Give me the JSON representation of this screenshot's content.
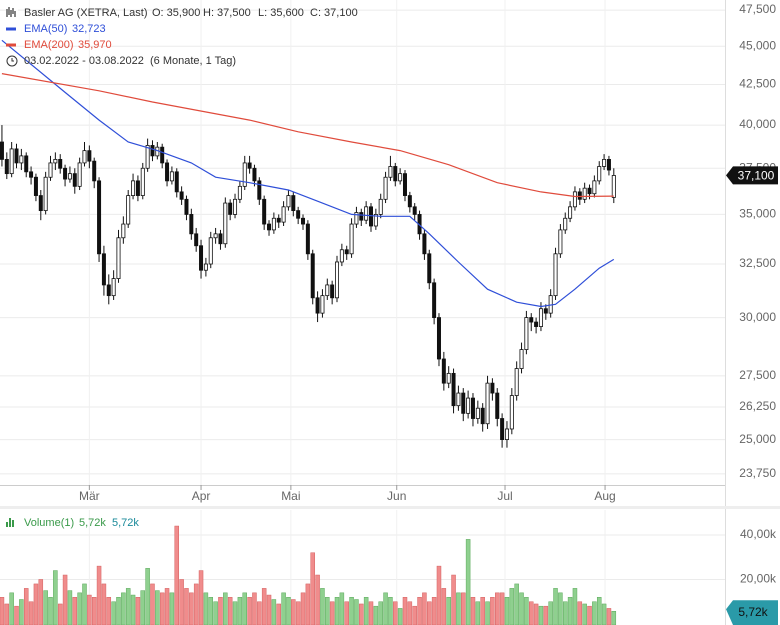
{
  "chart_data": {
    "type": "candlestick",
    "title": "Basler AG (XETRA, Last)",
    "ohlc_labels": [
      "O: 35,900",
      "H: 37,500",
      "L: 35,600",
      "C: 37,100"
    ],
    "date_range": "03.02.2022 - 03.08.2022",
    "period": "(6 Monate, 1 Tag)",
    "log_y": true,
    "grid": true,
    "up_color": "#ffffff",
    "down_color": "#111111",
    "volume_up_color": "#8fd08f",
    "volume_down_color": "#f08c8c",
    "ylim": [
      23360,
      48220
    ],
    "yticks": [
      {
        "value": 23750,
        "label": "23,750"
      },
      {
        "value": 25000,
        "label": "25,000"
      },
      {
        "value": 26250,
        "label": "26,250"
      },
      {
        "value": 27500,
        "label": "27,500"
      },
      {
        "value": 30000,
        "label": "30,000"
      },
      {
        "value": 32500,
        "label": "32,500"
      },
      {
        "value": 35000,
        "label": "35,000"
      },
      {
        "value": 37500,
        "label": "37,500"
      },
      {
        "value": 40000,
        "label": "40,000"
      },
      {
        "value": 42500,
        "label": "42,500"
      },
      {
        "value": 45000,
        "label": "45,000"
      },
      {
        "value": 47500,
        "label": "47,500"
      }
    ],
    "xlim": [
      -0.4,
      148.9
    ],
    "xticks": [
      {
        "value": 18,
        "label": "Mär"
      },
      {
        "value": 41,
        "label": "Apr"
      },
      {
        "value": 59.5,
        "label": "Mai"
      },
      {
        "value": 81.3,
        "label": "Jun"
      },
      {
        "value": 103.6,
        "label": "Jul"
      },
      {
        "value": 124.2,
        "label": "Aug"
      }
    ],
    "price_tag": "37,100",
    "series": [
      {
        "name": "EMA(50)",
        "color": "#2f4fd8",
        "value_label": "32,723",
        "x": [
          0,
          13,
          20,
          26,
          32,
          39,
          44,
          51,
          59,
          65,
          72,
          78,
          84,
          88,
          94,
          100,
          106,
          111,
          114,
          118,
          123,
          126
        ],
        "values": [
          45400,
          42000,
          40300,
          39000,
          38500,
          37800,
          37000,
          36700,
          36300,
          35700,
          35000,
          34900,
          34900,
          34000,
          32600,
          31300,
          30700,
          30500,
          30600,
          31300,
          32300,
          32723
        ]
      },
      {
        "name": "EMA(200)",
        "color": "#e04b3c",
        "value_label": "35,970",
        "x": [
          0,
          20,
          31,
          51,
          61,
          72,
          82,
          92,
          102,
          111,
          118,
          126
        ],
        "values": [
          43200,
          42100,
          41400,
          40300,
          39600,
          39000,
          38500,
          37700,
          36700,
          36200,
          35950,
          35970
        ]
      }
    ],
    "volume_legend": {
      "name": "Volume(1)",
      "values": [
        "5,72k",
        "5,72k"
      ]
    },
    "volume_tag": "5,72k",
    "volume_ylim": [
      0,
      51200
    ],
    "volume_yticks": [
      {
        "value": 20000,
        "label": "20,00k"
      },
      {
        "value": 40000,
        "label": "40,00k"
      }
    ],
    "candles": [
      [
        39000,
        40000,
        37600,
        38000,
        12000
      ],
      [
        38000,
        38400,
        36900,
        37200,
        9000
      ],
      [
        37200,
        39000,
        37000,
        38600,
        14000
      ],
      [
        38600,
        38900,
        37500,
        37800,
        8000
      ],
      [
        37800,
        38600,
        37400,
        38200,
        11000
      ],
      [
        38200,
        38400,
        37000,
        37300,
        16000
      ],
      [
        37300,
        37600,
        36600,
        37000,
        10000
      ],
      [
        37000,
        37200,
        35700,
        36000,
        18000
      ],
      [
        36000,
        36300,
        34700,
        35200,
        20000
      ],
      [
        35200,
        37300,
        35000,
        37000,
        15000
      ],
      [
        37000,
        38200,
        36800,
        37800,
        12000
      ],
      [
        37800,
        38400,
        37400,
        38000,
        24000
      ],
      [
        38000,
        38300,
        37200,
        37500,
        9000
      ],
      [
        37500,
        37700,
        36500,
        36900,
        22000
      ],
      [
        36900,
        37600,
        36700,
        37200,
        15000
      ],
      [
        37200,
        37500,
        36100,
        36500,
        12000
      ],
      [
        36500,
        38100,
        36300,
        37800,
        14000
      ],
      [
        37800,
        39000,
        37600,
        38500,
        18000
      ],
      [
        38500,
        38800,
        37500,
        37900,
        13000
      ],
      [
        37900,
        38100,
        36400,
        36800,
        12000
      ],
      [
        36800,
        37000,
        32600,
        33000,
        26000
      ],
      [
        33000,
        33400,
        31000,
        31500,
        18000
      ],
      [
        31500,
        32000,
        30600,
        31000,
        12000
      ],
      [
        31000,
        32200,
        30800,
        31800,
        10000
      ],
      [
        31800,
        34200,
        31600,
        33800,
        12000
      ],
      [
        33800,
        34900,
        33500,
        34500,
        14000
      ],
      [
        34500,
        36300,
        34300,
        36000,
        16000
      ],
      [
        36000,
        37200,
        35800,
        36800,
        13000
      ],
      [
        36800,
        37100,
        35700,
        36000,
        12000
      ],
      [
        36000,
        37800,
        35800,
        37500,
        15000
      ],
      [
        37500,
        39200,
        37300,
        38800,
        25000
      ],
      [
        38800,
        39100,
        37900,
        38200,
        18000
      ],
      [
        38200,
        39000,
        38000,
        38700,
        15000
      ],
      [
        38700,
        38900,
        37500,
        37800,
        14000
      ],
      [
        37800,
        38000,
        36500,
        36800,
        16000
      ],
      [
        36800,
        37600,
        36600,
        37300,
        14000
      ],
      [
        37300,
        37500,
        35900,
        36200,
        44000
      ],
      [
        36200,
        36500,
        35500,
        35800,
        20000
      ],
      [
        35800,
        36000,
        34700,
        35000,
        16000
      ],
      [
        35000,
        35300,
        33700,
        34000,
        14000
      ],
      [
        34000,
        34300,
        33100,
        33400,
        18000
      ],
      [
        33400,
        33700,
        31800,
        32200,
        24000
      ],
      [
        32200,
        32800,
        31900,
        32500,
        14000
      ],
      [
        32500,
        34100,
        32300,
        33800,
        12000
      ],
      [
        33800,
        34300,
        33500,
        34000,
        10000
      ],
      [
        34000,
        34200,
        33200,
        33500,
        12000
      ],
      [
        33500,
        35900,
        33300,
        35600,
        14000
      ],
      [
        35600,
        35800,
        34700,
        35000,
        12000
      ],
      [
        35000,
        36100,
        34800,
        35800,
        10000
      ],
      [
        35800,
        36800,
        35600,
        36500,
        12000
      ],
      [
        36500,
        38200,
        36300,
        37800,
        14000
      ],
      [
        37800,
        38200,
        37200,
        37500,
        12000
      ],
      [
        37500,
        37700,
        36500,
        36800,
        14000
      ],
      [
        36800,
        37000,
        35500,
        35800,
        10000
      ],
      [
        35800,
        36000,
        34200,
        34500,
        16000
      ],
      [
        34500,
        34700,
        33900,
        34200,
        13000
      ],
      [
        34200,
        35100,
        34000,
        34800,
        11000
      ],
      [
        34800,
        35000,
        34300,
        34600,
        9000
      ],
      [
        34600,
        35700,
        34400,
        35400,
        14000
      ],
      [
        35400,
        36300,
        35200,
        36000,
        12000
      ],
      [
        36000,
        36200,
        34900,
        35200,
        11000
      ],
      [
        35200,
        35400,
        34500,
        34800,
        10000
      ],
      [
        34800,
        35000,
        34200,
        34500,
        14000
      ],
      [
        34500,
        34700,
        32700,
        33000,
        18000
      ],
      [
        33000,
        33200,
        30600,
        30900,
        32000
      ],
      [
        30900,
        31200,
        29800,
        30200,
        22000
      ],
      [
        30200,
        31300,
        30000,
        31000,
        16000
      ],
      [
        31000,
        31800,
        30800,
        31500,
        12000
      ],
      [
        31500,
        31700,
        30600,
        30900,
        10000
      ],
      [
        30900,
        32900,
        30700,
        32600,
        12000
      ],
      [
        32600,
        33500,
        32400,
        33200,
        14000
      ],
      [
        33200,
        33400,
        32700,
        33000,
        10000
      ],
      [
        33000,
        34800,
        32800,
        34500,
        12000
      ],
      [
        34500,
        35400,
        34300,
        35100,
        11000
      ],
      [
        35100,
        35300,
        34400,
        34700,
        9000
      ],
      [
        34700,
        35700,
        34500,
        35400,
        12000
      ],
      [
        35400,
        35600,
        34100,
        34400,
        10000
      ],
      [
        34400,
        35300,
        34200,
        35000,
        8000
      ],
      [
        35000,
        36100,
        34800,
        35800,
        10000
      ],
      [
        35800,
        37300,
        35600,
        37000,
        14000
      ],
      [
        37000,
        38200,
        36800,
        37600,
        12000
      ],
      [
        37600,
        37800,
        36500,
        36800,
        10000
      ],
      [
        36800,
        37500,
        36600,
        37200,
        7000
      ],
      [
        37200,
        37400,
        35700,
        36000,
        12000
      ],
      [
        36000,
        36200,
        35100,
        35400,
        10000
      ],
      [
        35400,
        35600,
        34700,
        35000,
        8000
      ],
      [
        35000,
        35200,
        33700,
        34000,
        12000
      ],
      [
        34000,
        34200,
        32700,
        33000,
        14000
      ],
      [
        33000,
        33200,
        31300,
        31600,
        10000
      ],
      [
        31600,
        31800,
        29700,
        30000,
        12000
      ],
      [
        30000,
        30200,
        27900,
        28200,
        26000
      ],
      [
        28200,
        28500,
        26900,
        27200,
        16000
      ],
      [
        27200,
        27900,
        27000,
        27600,
        12000
      ],
      [
        27600,
        27800,
        26000,
        26300,
        22000
      ],
      [
        26300,
        27100,
        26100,
        26800,
        14000
      ],
      [
        26800,
        27000,
        25700,
        26000,
        14000
      ],
      [
        26000,
        26900,
        25800,
        26600,
        38000
      ],
      [
        26600,
        26800,
        25500,
        25800,
        12000
      ],
      [
        25800,
        26500,
        25600,
        26200,
        10000
      ],
      [
        26200,
        26400,
        25300,
        25600,
        12000
      ],
      [
        25600,
        27500,
        25400,
        27200,
        10000
      ],
      [
        27200,
        27400,
        26500,
        26800,
        12000
      ],
      [
        26800,
        27000,
        25500,
        25800,
        14000
      ],
      [
        25800,
        26000,
        24700,
        25000,
        14000
      ],
      [
        25000,
        25700,
        24700,
        25400,
        12000
      ],
      [
        25400,
        27000,
        25200,
        26700,
        16000
      ],
      [
        26700,
        28100,
        26500,
        27800,
        18000
      ],
      [
        27800,
        28900,
        27600,
        28600,
        14000
      ],
      [
        28600,
        30300,
        28400,
        30000,
        12000
      ],
      [
        30000,
        30200,
        29400,
        29800,
        10000
      ],
      [
        29800,
        30000,
        29300,
        29600,
        9000
      ],
      [
        29600,
        30700,
        29400,
        30400,
        8000
      ],
      [
        30400,
        30600,
        29900,
        30200,
        8000
      ],
      [
        30200,
        31300,
        30000,
        31000,
        10000
      ],
      [
        31000,
        33300,
        30800,
        33000,
        16000
      ],
      [
        33000,
        34500,
        32800,
        34200,
        14000
      ],
      [
        34200,
        35100,
        34000,
        34800,
        10000
      ],
      [
        34800,
        35700,
        34600,
        35400,
        12000
      ],
      [
        35400,
        36500,
        35200,
        36200,
        16000
      ],
      [
        36200,
        36400,
        35500,
        35800,
        10000
      ],
      [
        35800,
        36700,
        35600,
        36400,
        9000
      ],
      [
        36400,
        36600,
        35800,
        36100,
        8000
      ],
      [
        36100,
        37100,
        35900,
        36800,
        10000
      ],
      [
        36800,
        37900,
        36600,
        37600,
        12000
      ],
      [
        37600,
        38300,
        37400,
        38000,
        9000
      ],
      [
        38000,
        38200,
        37100,
        37400,
        7000
      ],
      [
        35900,
        37500,
        35600,
        37100,
        5720
      ]
    ]
  }
}
